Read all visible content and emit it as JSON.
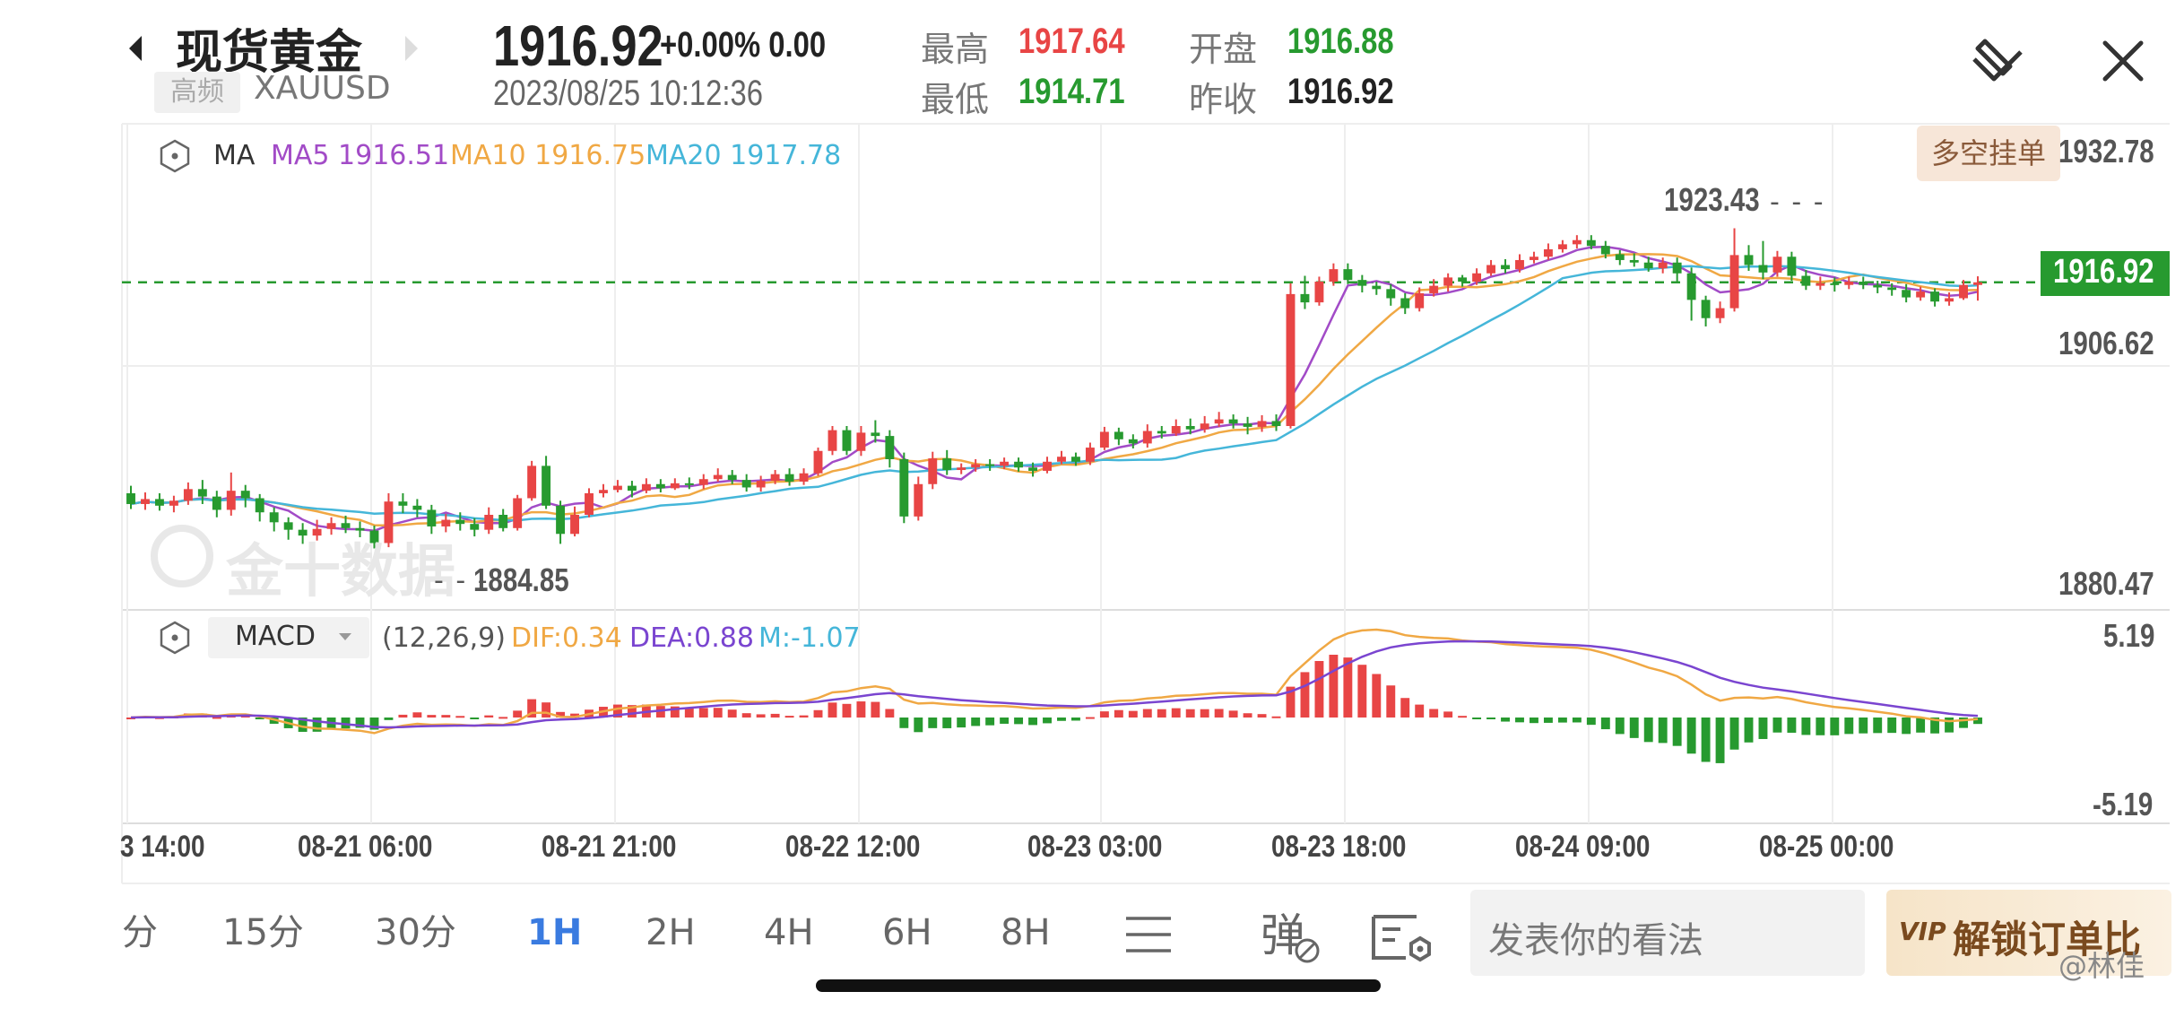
{
  "header": {
    "back_icon": "caret-left-icon",
    "title": "现货黄金",
    "next_icon": "caret-right-icon",
    "badge": "高频",
    "symbol": "XAUUSD",
    "price": "1916.92",
    "change": "+0.00% 0.00",
    "datetime": "2023/08/25 10:12:36",
    "high_label": "最高",
    "high_value": "1917.64",
    "low_label": "最低",
    "low_value": "1914.71",
    "open_label": "开盘",
    "open_value": "1916.88",
    "prev_label": "昨收",
    "prev_value": "1916.92",
    "draw_icon": "pen-draw-icon",
    "close_icon": "close-icon"
  },
  "main_chart": {
    "ma_label": "MA",
    "ma5": "MA5 1916.51",
    "ma10": "MA10 1916.75",
    "ma20": "MA20 1917.78",
    "order_button": "多空挂单",
    "axis_top": "1932.78",
    "axis_mid": "1906.62",
    "axis_bottom": "1880.47",
    "current_price_tag": "1916.92",
    "high_marker": "1923.43",
    "low_marker": "1884.85",
    "watermark": "金十数据"
  },
  "macd_chart": {
    "indicator": "MACD",
    "params": "(12,26,9)",
    "dif": "DIF:0.34",
    "dea": "DEA:0.88",
    "m": "M:-1.07",
    "axis_top": "5.19",
    "axis_bottom": "-5.19"
  },
  "time_axis": [
    "3 14:00",
    "08-21 06:00",
    "08-21 21:00",
    "08-22 12:00",
    "08-23 03:00",
    "08-23 18:00",
    "08-24 09:00",
    "08-25 00:00"
  ],
  "tabs": [
    "分",
    "15分",
    "30分",
    "1H",
    "2H",
    "4H",
    "6H",
    "8H"
  ],
  "active_tab": "1H",
  "toolbar": {
    "menu_icon": "menu-lines-icon",
    "danmu_icon": "danmu-icon",
    "chart_settings_icon": "chart-settings-icon",
    "comment_placeholder": "发表你的看法",
    "vip_button": "解锁订单比",
    "vip_badge": "VIP"
  },
  "weibo_watermark": "@林佳",
  "colors": {
    "up": "#e84545",
    "down": "#279a2f",
    "ma5": "#a24bc7",
    "ma10": "#f0a844",
    "ma20": "#45b6d9",
    "dif": "#f0a844",
    "dea": "#7a45d0",
    "accent": "#3a7be0"
  },
  "chart_data": {
    "type": "candlestick",
    "x_labels": [
      "3 14:00",
      "08-21 06:00",
      "08-21 21:00",
      "08-22 12:00",
      "08-23 03:00",
      "08-23 18:00",
      "08-24 09:00",
      "08-25 00:00"
    ],
    "ylim": [
      1880.47,
      1932.78
    ],
    "candles": [
      [
        1891.5,
        1890.2,
        1892.4,
        1889.6
      ],
      [
        1890.2,
        1890.8,
        1891.6,
        1889.5
      ],
      [
        1890.8,
        1890.0,
        1891.5,
        1889.4
      ],
      [
        1890.0,
        1890.6,
        1891.2,
        1889.2
      ],
      [
        1890.6,
        1892.0,
        1892.8,
        1890.1
      ],
      [
        1892.0,
        1891.1,
        1893.1,
        1890.2
      ],
      [
        1891.1,
        1889.5,
        1891.8,
        1888.6
      ],
      [
        1889.5,
        1891.8,
        1894.0,
        1888.8
      ],
      [
        1891.8,
        1890.9,
        1892.5,
        1889.8
      ],
      [
        1890.9,
        1889.2,
        1891.4,
        1888.1
      ],
      [
        1889.2,
        1888.0,
        1889.8,
        1886.9
      ],
      [
        1888.0,
        1887.1,
        1888.6,
        1885.9
      ],
      [
        1887.1,
        1886.4,
        1887.9,
        1885.4
      ],
      [
        1886.4,
        1887.2,
        1888.3,
        1885.8
      ],
      [
        1887.2,
        1887.9,
        1888.6,
        1886.5
      ],
      [
        1887.9,
        1887.3,
        1888.8,
        1886.7
      ],
      [
        1887.3,
        1887.0,
        1888.1,
        1886.2
      ],
      [
        1887.0,
        1885.5,
        1887.6,
        1884.85
      ],
      [
        1885.5,
        1890.5,
        1891.5,
        1885.0
      ],
      [
        1890.5,
        1890.0,
        1891.5,
        1889.1
      ],
      [
        1890.0,
        1889.5,
        1890.8,
        1888.6
      ],
      [
        1889.5,
        1887.5,
        1890.1,
        1886.6
      ],
      [
        1887.5,
        1888.3,
        1889.0,
        1886.8
      ],
      [
        1888.3,
        1887.8,
        1889.2,
        1887.0
      ],
      [
        1887.8,
        1887.1,
        1888.5,
        1886.3
      ],
      [
        1887.1,
        1888.9,
        1889.8,
        1886.6
      ],
      [
        1888.9,
        1887.3,
        1889.6,
        1886.9
      ],
      [
        1887.3,
        1890.9,
        1891.3,
        1887.0
      ],
      [
        1890.9,
        1894.8,
        1895.4,
        1890.6
      ],
      [
        1894.8,
        1890.0,
        1896.0,
        1889.6
      ],
      [
        1890.0,
        1886.6,
        1890.6,
        1885.4
      ],
      [
        1886.6,
        1888.9,
        1889.9,
        1886.3
      ],
      [
        1888.9,
        1891.5,
        1892.1,
        1888.6
      ],
      [
        1891.5,
        1891.9,
        1892.6,
        1891.0
      ],
      [
        1891.9,
        1892.4,
        1893.1,
        1891.6
      ],
      [
        1892.4,
        1891.8,
        1893.0,
        1891.0
      ],
      [
        1891.8,
        1892.6,
        1893.3,
        1891.5
      ],
      [
        1892.6,
        1892.1,
        1893.2,
        1891.6
      ],
      [
        1892.1,
        1892.7,
        1893.3,
        1891.9
      ],
      [
        1892.7,
        1892.5,
        1893.4,
        1892.0
      ],
      [
        1892.5,
        1893.2,
        1893.8,
        1892.0
      ],
      [
        1893.2,
        1893.7,
        1894.5,
        1892.9
      ],
      [
        1893.7,
        1893.1,
        1894.3,
        1892.6
      ],
      [
        1893.1,
        1892.2,
        1893.8,
        1891.7
      ],
      [
        1892.2,
        1893.0,
        1893.6,
        1891.7
      ],
      [
        1893.0,
        1893.8,
        1894.3,
        1892.6
      ],
      [
        1893.8,
        1892.9,
        1894.5,
        1892.4
      ],
      [
        1892.9,
        1893.9,
        1894.5,
        1892.5
      ],
      [
        1893.9,
        1896.6,
        1897.0,
        1893.6
      ],
      [
        1896.6,
        1899.1,
        1899.6,
        1896.1
      ],
      [
        1899.1,
        1896.6,
        1899.6,
        1896.1
      ],
      [
        1896.6,
        1898.8,
        1899.6,
        1896.0
      ],
      [
        1898.8,
        1898.4,
        1900.3,
        1897.6
      ],
      [
        1898.4,
        1895.6,
        1899.1,
        1894.6
      ],
      [
        1895.6,
        1888.7,
        1896.4,
        1887.9
      ],
      [
        1888.7,
        1892.6,
        1893.5,
        1888.2
      ],
      [
        1892.6,
        1895.7,
        1896.5,
        1892.0
      ],
      [
        1895.7,
        1894.3,
        1896.7,
        1893.7
      ],
      [
        1894.3,
        1894.6,
        1895.1,
        1893.8
      ],
      [
        1894.6,
        1895.0,
        1895.6,
        1894.1
      ],
      [
        1895.0,
        1894.8,
        1895.6,
        1894.2
      ],
      [
        1894.8,
        1895.3,
        1895.8,
        1894.4
      ],
      [
        1895.3,
        1894.6,
        1895.8,
        1894.1
      ],
      [
        1894.6,
        1894.2,
        1895.2,
        1893.5
      ],
      [
        1894.2,
        1895.3,
        1895.9,
        1893.9
      ],
      [
        1895.3,
        1895.9,
        1896.6,
        1895.0
      ],
      [
        1895.9,
        1895.3,
        1896.4,
        1894.8
      ],
      [
        1895.3,
        1897.0,
        1897.6,
        1894.9
      ],
      [
        1897.0,
        1898.9,
        1899.5,
        1896.7
      ],
      [
        1898.9,
        1898.0,
        1899.4,
        1897.3
      ],
      [
        1898.0,
        1897.5,
        1898.6,
        1896.9
      ],
      [
        1897.5,
        1899.0,
        1899.8,
        1897.0
      ],
      [
        1899.0,
        1898.7,
        1899.6,
        1898.1
      ],
      [
        1898.7,
        1899.6,
        1900.4,
        1898.4
      ],
      [
        1899.6,
        1899.2,
        1900.5,
        1898.6
      ],
      [
        1899.2,
        1899.9,
        1900.8,
        1898.8
      ],
      [
        1899.9,
        1900.4,
        1901.3,
        1899.5
      ],
      [
        1900.4,
        1899.9,
        1901.0,
        1899.3
      ],
      [
        1899.9,
        1899.5,
        1900.7,
        1898.6
      ],
      [
        1899.5,
        1900.2,
        1900.9,
        1898.9
      ],
      [
        1900.2,
        1899.6,
        1901.0,
        1899.0
      ],
      [
        1899.6,
        1915.5,
        1916.8,
        1899.3
      ],
      [
        1915.5,
        1914.5,
        1917.7,
        1913.7
      ],
      [
        1914.5,
        1917.0,
        1917.6,
        1914.1
      ],
      [
        1917.0,
        1918.5,
        1919.2,
        1916.5
      ],
      [
        1918.5,
        1917.2,
        1919.2,
        1916.7
      ],
      [
        1917.2,
        1916.5,
        1917.8,
        1915.7
      ],
      [
        1916.5,
        1916.1,
        1917.0,
        1915.4
      ],
      [
        1916.1,
        1915.0,
        1916.7,
        1914.1
      ],
      [
        1915.0,
        1913.8,
        1915.6,
        1913.1
      ],
      [
        1913.8,
        1915.6,
        1916.3,
        1913.4
      ],
      [
        1915.6,
        1916.5,
        1917.3,
        1915.2
      ],
      [
        1916.5,
        1917.5,
        1918.0,
        1915.8
      ],
      [
        1917.5,
        1917.0,
        1917.8,
        1916.4
      ],
      [
        1917.0,
        1918.0,
        1918.6,
        1916.6
      ],
      [
        1918.0,
        1919.0,
        1919.6,
        1917.7
      ],
      [
        1919.0,
        1918.5,
        1919.7,
        1918.0
      ],
      [
        1918.5,
        1919.6,
        1920.3,
        1918.1
      ],
      [
        1919.6,
        1920.0,
        1920.6,
        1919.2
      ],
      [
        1920.0,
        1920.9,
        1921.6,
        1919.6
      ],
      [
        1920.9,
        1921.5,
        1922.0,
        1920.5
      ],
      [
        1921.5,
        1922.0,
        1922.6,
        1921.0
      ],
      [
        1922.0,
        1921.3,
        1922.6,
        1920.9
      ],
      [
        1921.3,
        1920.3,
        1921.9,
        1919.8
      ],
      [
        1920.3,
        1919.6,
        1920.8,
        1919.0
      ],
      [
        1919.6,
        1919.3,
        1920.4,
        1918.8
      ],
      [
        1919.3,
        1918.6,
        1920.0,
        1918.2
      ],
      [
        1918.6,
        1919.3,
        1919.9,
        1918.0
      ],
      [
        1919.3,
        1918.0,
        1919.9,
        1917.0
      ],
      [
        1918.0,
        1914.8,
        1918.7,
        1912.3
      ],
      [
        1914.8,
        1912.6,
        1915.3,
        1911.6
      ],
      [
        1912.6,
        1913.8,
        1914.6,
        1912.0
      ],
      [
        1913.8,
        1920.2,
        1923.43,
        1913.4
      ],
      [
        1920.2,
        1919.0,
        1921.4,
        1918.3
      ],
      [
        1919.0,
        1918.1,
        1921.9,
        1917.3
      ],
      [
        1918.1,
        1920.0,
        1920.7,
        1917.6
      ],
      [
        1920.0,
        1917.7,
        1920.6,
        1917.1
      ],
      [
        1917.7,
        1916.5,
        1918.4,
        1916.0
      ],
      [
        1916.5,
        1916.8,
        1917.6,
        1916.0
      ],
      [
        1916.8,
        1916.6,
        1917.5,
        1915.8
      ],
      [
        1916.6,
        1917.0,
        1917.6,
        1916.1
      ],
      [
        1917.0,
        1916.6,
        1917.6,
        1916.1
      ],
      [
        1916.6,
        1916.3,
        1917.1,
        1915.6
      ],
      [
        1916.3,
        1916.0,
        1916.8,
        1915.3
      ],
      [
        1916.0,
        1915.1,
        1916.7,
        1914.5
      ],
      [
        1915.1,
        1915.8,
        1916.4,
        1914.7
      ],
      [
        1915.8,
        1914.6,
        1916.2,
        1914.0
      ],
      [
        1914.6,
        1915.0,
        1915.7,
        1914.1
      ],
      [
        1915.0,
        1916.6,
        1917.2,
        1914.8
      ],
      [
        1916.6,
        1916.92,
        1917.64,
        1914.71
      ]
    ],
    "ma_series": [
      {
        "name": "MA5"
      },
      {
        "name": "MA10"
      },
      {
        "name": "MA20"
      }
    ],
    "macd": {
      "ylim": [
        -5.19,
        5.19
      ],
      "series": [
        {
          "name": "DIF"
        },
        {
          "name": "DEA"
        },
        {
          "name": "M"
        }
      ]
    },
    "current_price": 1916.92,
    "marked_high": 1923.43,
    "marked_low": 1884.85
  }
}
